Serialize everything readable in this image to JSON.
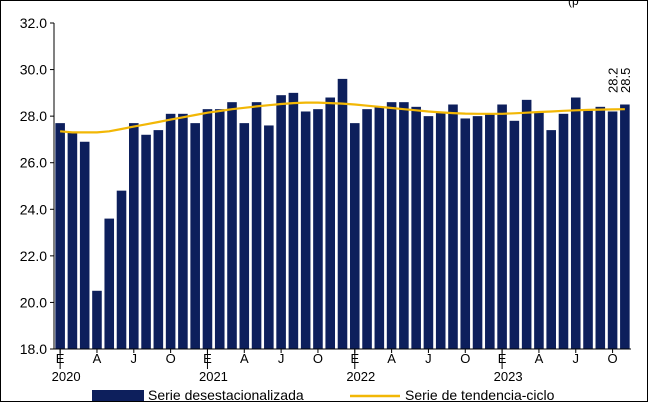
{
  "corner_text": "(p",
  "chart_data": {
    "type": "bar",
    "ylim": [
      18,
      32
    ],
    "y_ticks": [
      "18.0",
      "20.0",
      "22.0",
      "24.0",
      "26.0",
      "28.0",
      "30.0",
      "32.0"
    ],
    "x_month_labels": [
      "E",
      "A",
      "J",
      "O",
      "E",
      "A",
      "J",
      "O",
      "E",
      "A",
      "J",
      "O",
      "E",
      "A",
      "J",
      "O"
    ],
    "x_year_labels": [
      "2020",
      "2021",
      "2022",
      "2023"
    ],
    "grid": false,
    "legend_position": "bottom",
    "annotations": [
      "28.2",
      "28.5"
    ],
    "colors": {
      "bars": "#0d1f5c",
      "trend": "#f2b705"
    },
    "series": [
      {
        "name": "Serie desestacionalizada",
        "type": "bar",
        "values": [
          27.7,
          27.3,
          26.9,
          20.5,
          23.6,
          24.8,
          27.7,
          27.2,
          27.4,
          28.1,
          28.1,
          27.7,
          28.3,
          28.3,
          28.6,
          27.7,
          28.6,
          27.6,
          28.9,
          29.0,
          28.2,
          28.3,
          28.8,
          29.6,
          27.7,
          28.3,
          28.4,
          28.6,
          28.6,
          28.4,
          28.0,
          28.2,
          28.5,
          27.9,
          28.0,
          28.1,
          28.5,
          27.8,
          28.7,
          28.2,
          27.4,
          28.1,
          28.8,
          28.3,
          28.4,
          28.2,
          28.5
        ]
      },
      {
        "name": "Serie de tendencia-ciclo",
        "type": "line",
        "values": [
          27.35,
          27.3,
          27.3,
          27.3,
          27.35,
          27.45,
          27.55,
          27.65,
          27.75,
          27.85,
          27.95,
          28.05,
          28.15,
          28.22,
          28.3,
          28.36,
          28.42,
          28.47,
          28.52,
          28.56,
          28.58,
          28.58,
          28.56,
          28.54,
          28.5,
          28.45,
          28.4,
          28.35,
          28.3,
          28.25,
          28.2,
          28.16,
          28.13,
          28.11,
          28.1,
          28.1,
          28.1,
          28.12,
          28.15,
          28.18,
          28.2,
          28.23,
          28.25,
          28.27,
          28.28,
          28.29,
          28.3
        ]
      }
    ]
  }
}
